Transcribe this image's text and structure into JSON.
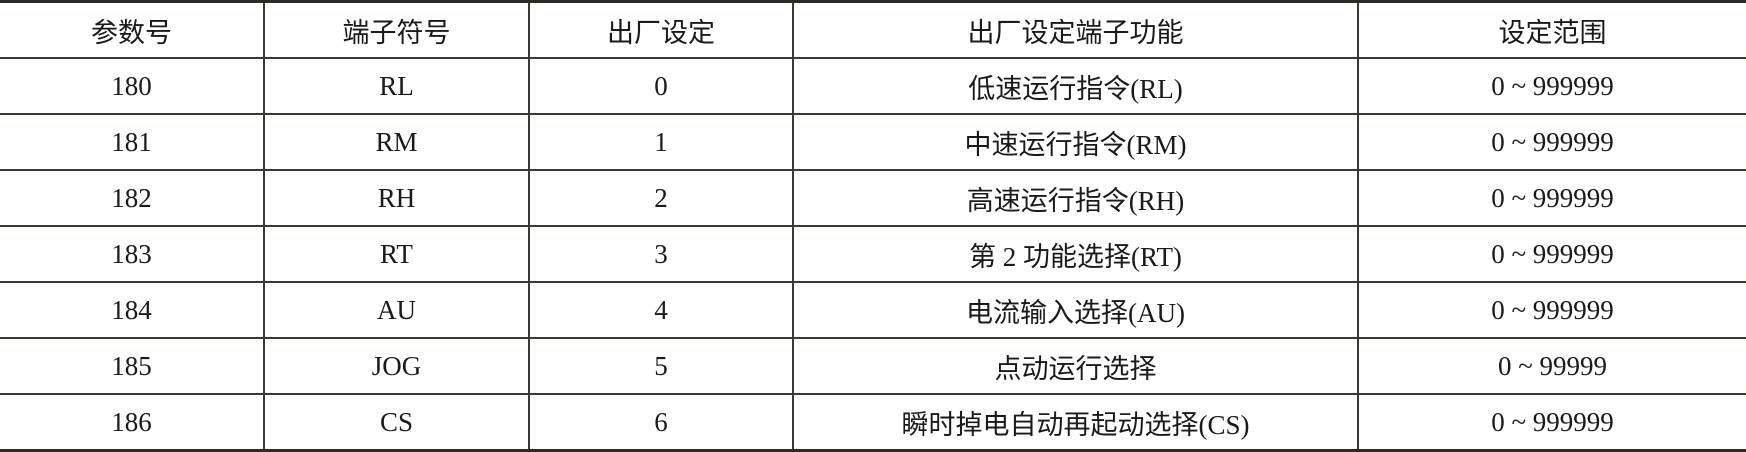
{
  "table": {
    "headers": [
      "参数号",
      "端子符号",
      "出厂设定",
      "出厂设定端子功能",
      "设定范围"
    ],
    "rows": [
      [
        "180",
        "RL",
        "0",
        "低速运行指令(RL)",
        "0 ~ 999999"
      ],
      [
        "181",
        "RM",
        "1",
        "中速运行指令(RM)",
        "0 ~ 999999"
      ],
      [
        "182",
        "RH",
        "2",
        "高速运行指令(RH)",
        "0 ~ 999999"
      ],
      [
        "183",
        "RT",
        "3",
        "第 2 功能选择(RT)",
        "0 ~ 999999"
      ],
      [
        "184",
        "AU",
        "4",
        "电流输入选择(AU)",
        "0 ~ 999999"
      ],
      [
        "185",
        "JOG",
        "5",
        "点动运行选择",
        "0 ~ 99999"
      ],
      [
        "186",
        "CS",
        "6",
        "瞬时掉电自动再起动选择(CS)",
        "0 ~ 999999"
      ]
    ]
  }
}
